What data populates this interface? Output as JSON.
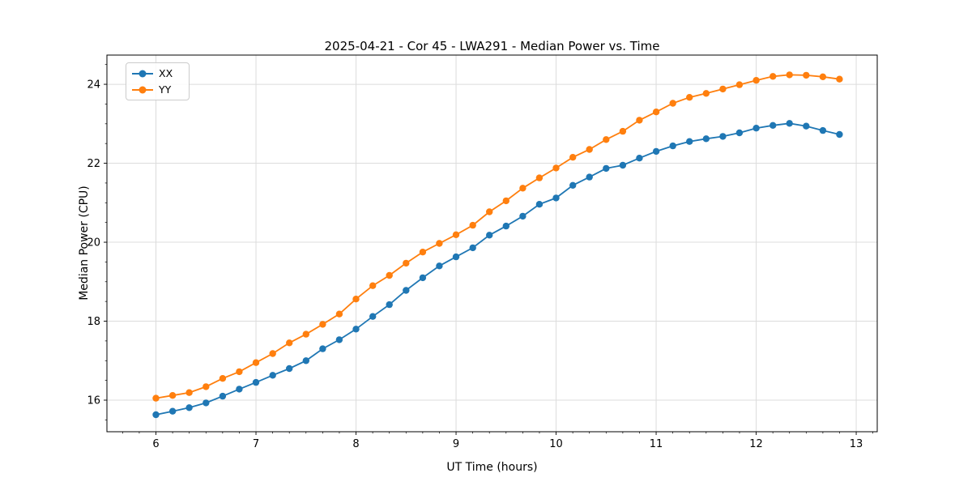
{
  "title": "2025-04-21 - Cor 45 - LWA291 - Median Power vs. Time",
  "legend": {
    "items": [
      {
        "label": "XX",
        "color": "#1f77b4"
      },
      {
        "label": "YY",
        "color": "#ff7f0e"
      }
    ]
  },
  "chart_data": {
    "type": "line",
    "title": "2025-04-21 - Cor 45 - LWA291 - Median Power vs. Time",
    "xlabel": "UT Time (hours)",
    "ylabel": "Median Power (CPU)",
    "xlim": [
      5.51,
      13.21
    ],
    "ylim": [
      15.2,
      24.74
    ],
    "xticks": [
      6,
      7,
      8,
      9,
      10,
      11,
      12,
      13
    ],
    "yticks": [
      16,
      18,
      20,
      22,
      24
    ],
    "minor_x_step": 0.1666667,
    "minor_y_step": 0.5,
    "grid": true,
    "grid_color": "#dcdcdc",
    "legend_position": "upper left",
    "marker": "o",
    "x": [
      6.0,
      6.167,
      6.333,
      6.5,
      6.667,
      6.833,
      7.0,
      7.167,
      7.333,
      7.5,
      7.667,
      7.833,
      8.0,
      8.167,
      8.333,
      8.5,
      8.667,
      8.833,
      9.0,
      9.167,
      9.333,
      9.5,
      9.667,
      9.833,
      10.0,
      10.167,
      10.333,
      10.5,
      10.667,
      10.833,
      11.0,
      11.167,
      11.333,
      11.5,
      11.667,
      11.833,
      12.0,
      12.167,
      12.333,
      12.5,
      12.667,
      12.833
    ],
    "series": [
      {
        "name": "XX",
        "color": "#1f77b4",
        "values": [
          15.63,
          15.72,
          15.81,
          15.93,
          16.1,
          16.28,
          16.45,
          16.63,
          16.8,
          17.0,
          17.3,
          17.53,
          17.8,
          18.12,
          18.42,
          18.78,
          19.1,
          19.4,
          19.63,
          19.86,
          20.18,
          20.41,
          20.66,
          20.96,
          21.12,
          21.44,
          21.65,
          21.87,
          21.95,
          22.13,
          22.3,
          22.44,
          22.55,
          22.62,
          22.68,
          22.77,
          22.89,
          22.96,
          23.01,
          22.94,
          22.83,
          22.73
        ]
      },
      {
        "name": "YY",
        "color": "#ff7f0e",
        "values": [
          16.05,
          16.12,
          16.19,
          16.34,
          16.55,
          16.72,
          16.95,
          17.18,
          17.45,
          17.67,
          17.92,
          18.18,
          18.56,
          18.9,
          19.16,
          19.47,
          19.75,
          19.97,
          20.19,
          20.43,
          20.77,
          21.05,
          21.37,
          21.63,
          21.88,
          22.15,
          22.35,
          22.6,
          22.81,
          23.09,
          23.3,
          23.52,
          23.67,
          23.77,
          23.88,
          23.99,
          24.1,
          24.2,
          24.24,
          24.23,
          24.19,
          24.13
        ]
      }
    ]
  }
}
